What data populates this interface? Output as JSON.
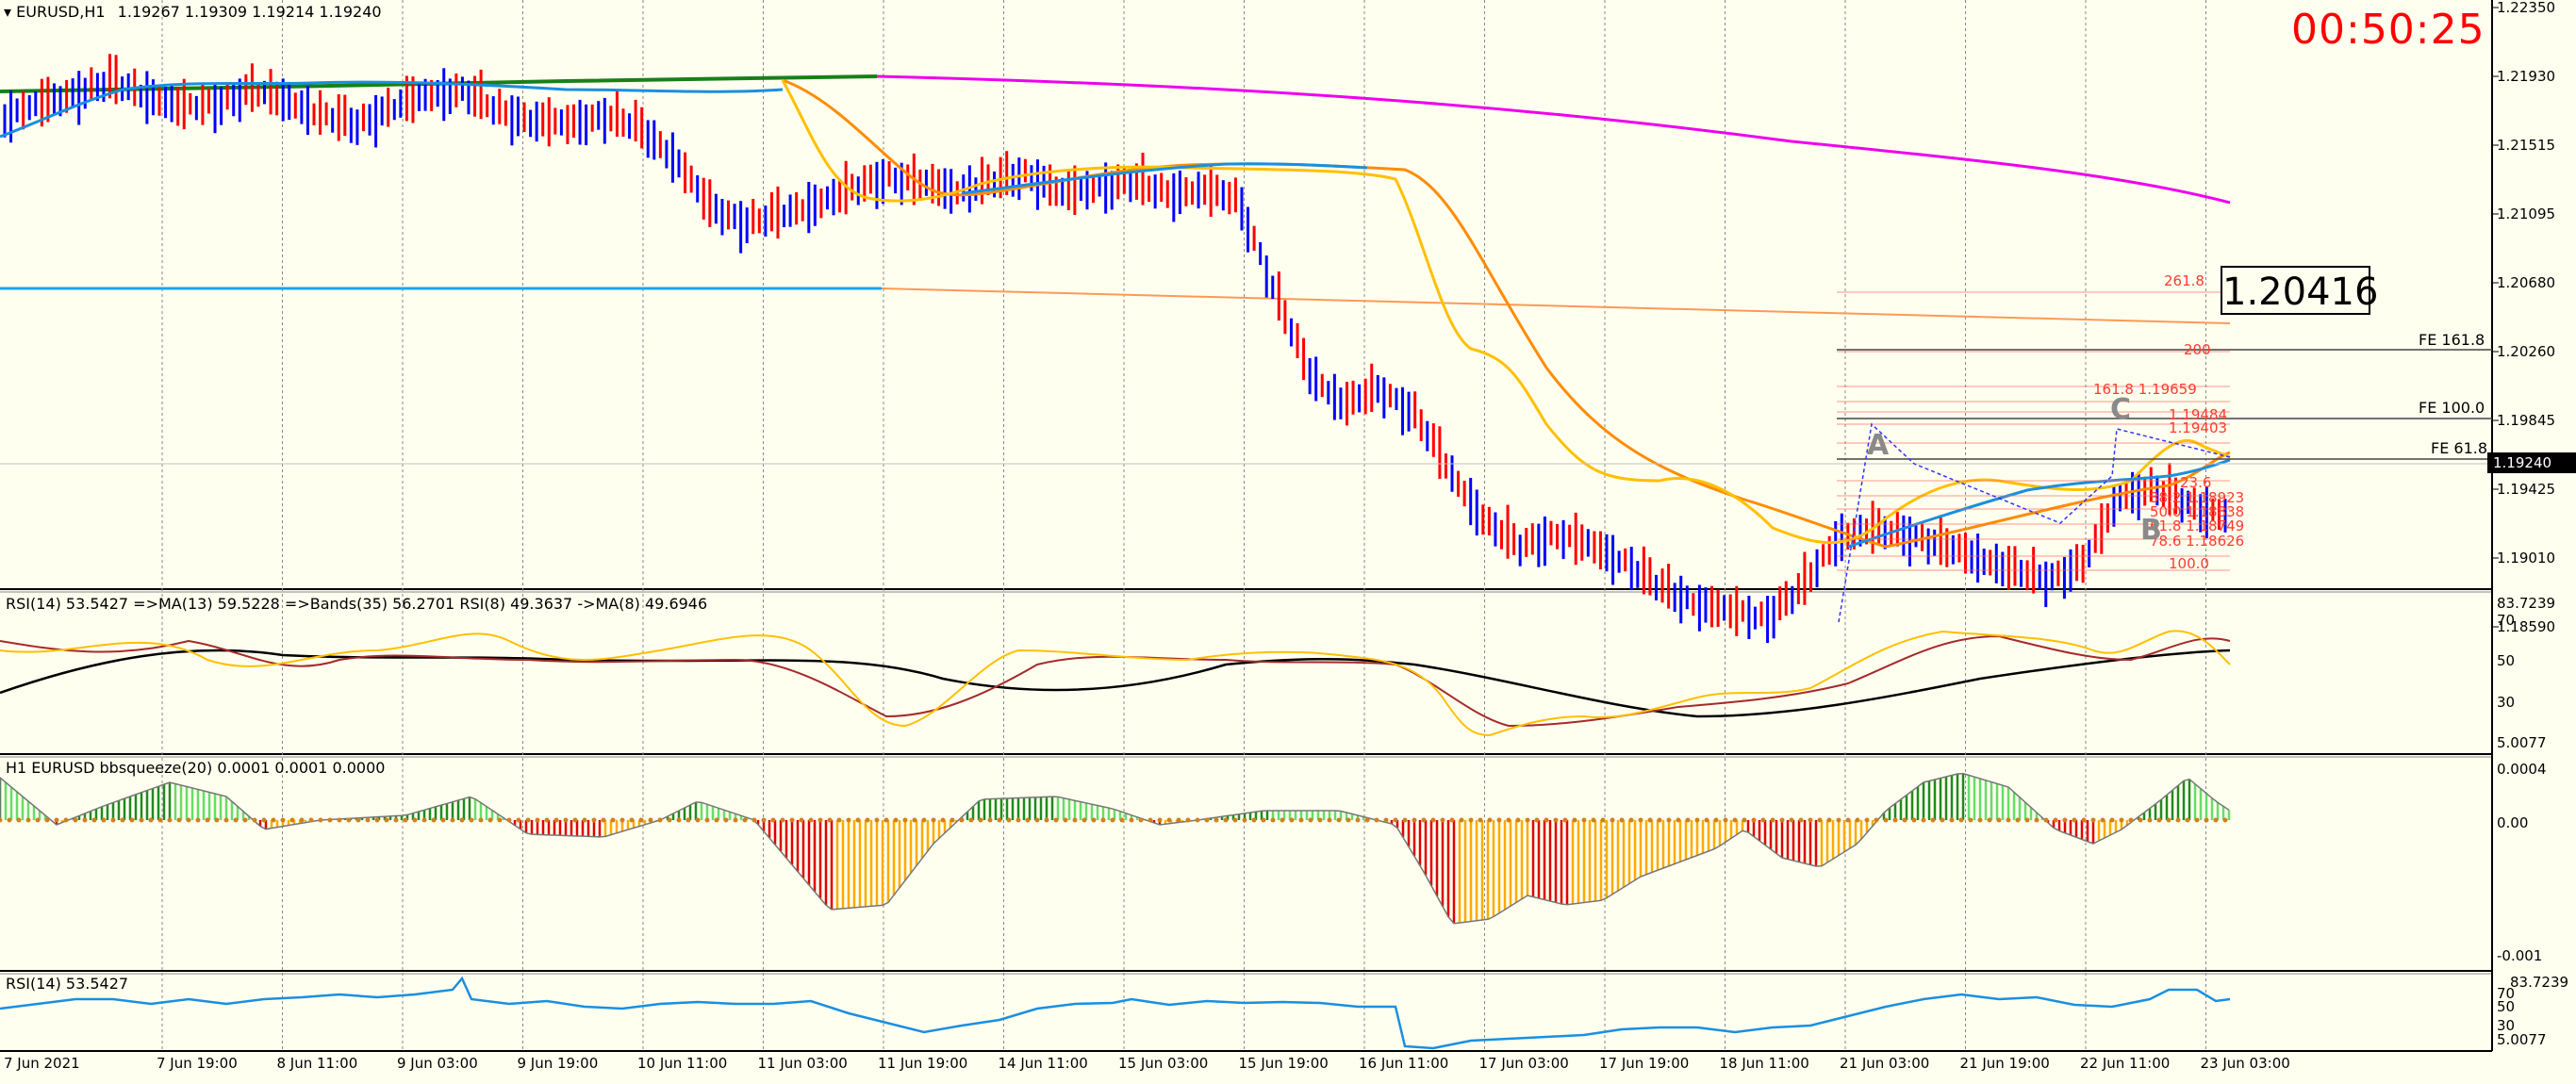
{
  "window": {
    "symbol_header": "EURUSD,H1",
    "ohlc": "1.19267 1.19309 1.19214 1.19240",
    "clock": "00:50:25"
  },
  "price_axis": {
    "labels": [
      "1.22350",
      "1.21930",
      "1.21515",
      "1.21095",
      "1.20680",
      "1.20260",
      "1.19845",
      "1.19425",
      "1.19010",
      "1.18590"
    ],
    "current_price": "1.19240",
    "big_price": "1.20416"
  },
  "fe_levels": [
    "FE 161.8",
    "FE 100.0",
    "FE 61.8"
  ],
  "fib_labels": [
    {
      "t": "261.8"
    },
    {
      "t": "200"
    },
    {
      "t": "161.8  1.19659"
    },
    {
      "t": "1.19484"
    },
    {
      "t": "1.19403"
    },
    {
      "t": "23.6"
    },
    {
      "t": "38.2  1.18923"
    },
    {
      "t": "50.0  1.18838"
    },
    {
      "t": "61.8  1.18749"
    },
    {
      "t": "78.6  1.18626"
    },
    {
      "t": "100.0"
    }
  ],
  "wave_labels": [
    "A",
    "B",
    "C"
  ],
  "rsi_panel": {
    "header": "RSI(14) 53.5427  =>MA(13) 59.5228  =>Bands(35) 56.2701  RSI(8) 49.3637  ->MA(8) 49.6946",
    "axis": [
      "83.7239",
      "70",
      "50",
      "30",
      "5.0077"
    ]
  },
  "squeeze_panel": {
    "header": "H1 EURUSD bbsqueeze(20) 0.0001 0.0001 0.0000",
    "axis": [
      "0.0004",
      "0.00",
      "-0.001"
    ]
  },
  "rsi2_panel": {
    "header": "RSI(14) 53.5427",
    "axis": [
      "83.7239",
      "70",
      "50",
      "30",
      "5.0077"
    ]
  },
  "time_axis": [
    "7 Jun 2021",
    "7 Jun 19:00",
    "8 Jun 11:00",
    "9 Jun 03:00",
    "9 Jun 19:00",
    "10 Jun 11:00",
    "11 Jun 03:00",
    "11 Jun 19:00",
    "14 Jun 11:00",
    "15 Jun 03:00",
    "15 Jun 19:00",
    "16 Jun 11:00",
    "17 Jun 03:00",
    "17 Jun 19:00",
    "18 Jun 11:00",
    "21 Jun 03:00",
    "21 Jun 19:00",
    "22 Jun 11:00",
    "23 Jun 03:00"
  ],
  "colors": {
    "background": "#fffff0",
    "bull_candle": "#0000ff",
    "bear_candle": "#ff0000",
    "ma_fast": "#ffc000",
    "ma_slow": "#ff8c00",
    "ma_cyan": "#00bfff",
    "ma_green": "#1a7f1a",
    "ma_magenta": "#ee00ee",
    "clock": "#ff0000"
  },
  "chart_data": {
    "type": "line",
    "title": "EURUSD,H1",
    "price_close_path": [
      1.2165,
      1.2172,
      1.2178,
      1.2186,
      1.2178,
      1.217,
      1.2172,
      1.218,
      1.2175,
      1.2165,
      1.216,
      1.217,
      1.2178,
      1.218,
      1.2168,
      1.2162,
      1.216,
      1.2165,
      1.2158,
      1.214,
      1.211,
      1.21,
      1.2105,
      1.2112,
      1.212,
      1.2128,
      1.2124,
      1.212,
      1.2125,
      1.213,
      1.2118,
      1.2122,
      1.2125,
      1.2118,
      1.212,
      1.2115,
      1.206,
      1.201,
      1.199,
      1.2,
      1.1985,
      1.195,
      1.192,
      1.1905,
      1.1912,
      1.1905,
      1.1895,
      1.188,
      1.187,
      1.1865,
      1.1862,
      1.188,
      1.191,
      1.1915,
      1.1912,
      1.1905,
      1.1898,
      1.189,
      1.1885,
      1.1895,
      1.1935,
      1.194,
      1.193,
      1.1924
    ],
    "ylim": [
      1.1859,
      1.2235
    ]
  }
}
